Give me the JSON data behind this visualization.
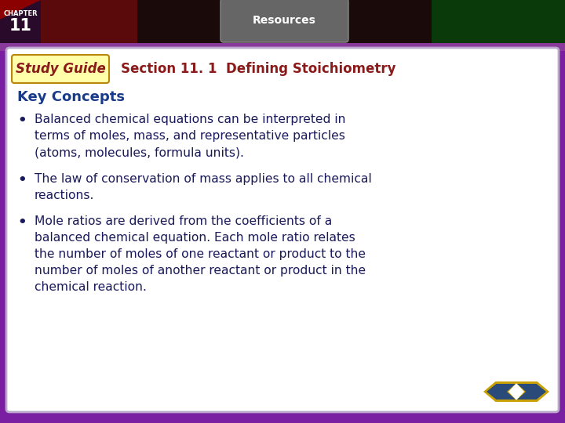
{
  "title_section": "Section 11. 1  Defining Stoichiometry",
  "study_guide_label": "Study Guide",
  "key_concepts_label": "Key Concepts",
  "resources_label": "Resources",
  "chapter_line1": "CHAPTER",
  "chapter_line2": "11",
  "bullet_points": [
    "Balanced chemical equations can be interpreted in\nterms of moles, mass, and representative particles\n(atoms, molecules, formula units).",
    "The law of conservation of mass applies to all chemical\nreactions.",
    "Mole ratios are derived from the coefficients of a\nbalanced chemical equation. Each mole ratio relates\nthe number of moles of one reactant or product to the\nnumber of moles of another reactant or product in the\nchemical reaction."
  ],
  "bg_outer": "#7b1fa2",
  "bg_inner": "#ffffff",
  "title_color": "#8b1a1a",
  "study_guide_bg": "#ffffaa",
  "study_guide_border": "#b8860b",
  "study_guide_text_color": "#8b1a1a",
  "key_concepts_color": "#1a3a8a",
  "bullet_color": "#1a1a5a",
  "resources_bg": "#666666",
  "resources_text": "#ffffff",
  "top_bar_dark": "#1a0a0a",
  "top_bar_red": "#5a0a0a",
  "top_bar_green": "#0a3a0a",
  "chapter_bg": "#2a0a2a",
  "chapter_text": "#ffffff",
  "purple_strip": "#8a3a9a",
  "nav_arrow_fill": "#2a4a7a",
  "nav_arrow_gold": "#c8a000"
}
